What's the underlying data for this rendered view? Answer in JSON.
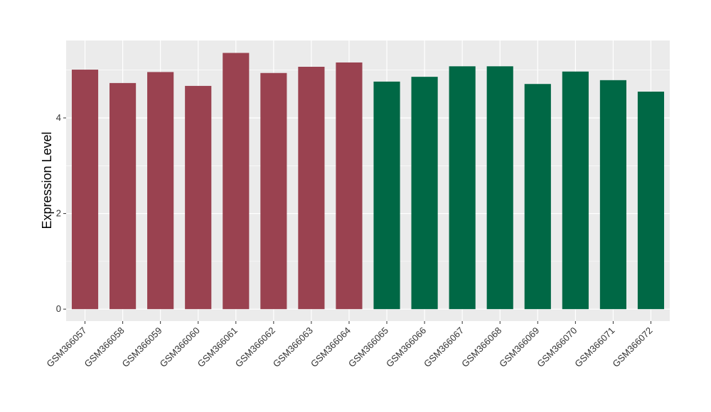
{
  "chart_data": {
    "type": "bar",
    "title": "",
    "xlabel": "",
    "ylabel": "Expression Level",
    "ylim": [
      -0.25,
      5.62
    ],
    "yticks": [
      0,
      2,
      4
    ],
    "yticks_minor": [
      1,
      3,
      5
    ],
    "grid": true,
    "legend": "none",
    "categories": [
      "GSM366057",
      "GSM366058",
      "GSM366059",
      "GSM366060",
      "GSM366061",
      "GSM366062",
      "GSM366063",
      "GSM366064",
      "GSM366065",
      "GSM366066",
      "GSM366067",
      "GSM366068",
      "GSM366069",
      "GSM366070",
      "GSM366071",
      "GSM366072"
    ],
    "values": [
      5.01,
      4.73,
      4.96,
      4.67,
      5.36,
      4.94,
      5.07,
      5.16,
      4.76,
      4.86,
      5.08,
      5.08,
      4.71,
      4.97,
      4.79,
      4.55
    ],
    "colors": [
      "#9a4250",
      "#9a4250",
      "#9a4250",
      "#9a4250",
      "#9a4250",
      "#9a4250",
      "#9a4250",
      "#9a4250",
      "#006845",
      "#006845",
      "#006845",
      "#006845",
      "#006845",
      "#006845",
      "#006845",
      "#006845"
    ],
    "panel_background": "#ebebeb",
    "grid_color": "#ffffff"
  }
}
